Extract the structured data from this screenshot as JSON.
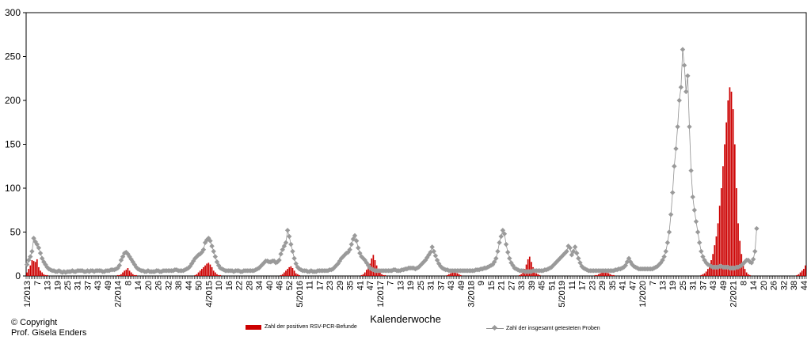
{
  "chart_data": {
    "type": "bar+line",
    "title": "",
    "xlabel": "Kalenderwoche",
    "ylabel": "",
    "ylim": [
      0,
      300
    ],
    "yticks": [
      0,
      50,
      100,
      150,
      200,
      250,
      300
    ],
    "x_tick_labels": [
      "1/2013",
      "7",
      "13",
      "19",
      "25",
      "31",
      "37",
      "43",
      "49",
      "2/2014",
      "8",
      "14",
      "20",
      "26",
      "32",
      "38",
      "44",
      "50",
      "4/2015",
      "10",
      "16",
      "22",
      "28",
      "34",
      "40",
      "46",
      "52",
      "5/2016",
      "11",
      "17",
      "23",
      "29",
      "35",
      "41",
      "47",
      "1/2017",
      "7",
      "13",
      "19",
      "25",
      "31",
      "37",
      "43",
      "49",
      "3/2018",
      "9",
      "15",
      "21",
      "27",
      "33",
      "39",
      "45",
      "51",
      "5/2019",
      "11",
      "17",
      "23",
      "29",
      "35",
      "41",
      "47",
      "1/2020",
      "7",
      "13",
      "19",
      "25",
      "31",
      "37",
      "43",
      "49",
      "2/2021",
      "8",
      "14",
      "20",
      "26",
      "32",
      "38",
      "44",
      "50",
      "4/2022",
      "10",
      "16",
      "22",
      "28",
      "34",
      "40",
      "46"
    ],
    "grid": false,
    "legend_position": "bottom",
    "series": [
      {
        "name": "Zahl der positiven RSV-PCR-Befunde",
        "type": "bar",
        "color": "#cc0000",
        "values": [
          4,
          8,
          12,
          18,
          17,
          16,
          19,
          10,
          6,
          4,
          2,
          1,
          1,
          0,
          0,
          0,
          0,
          0,
          0,
          0,
          0,
          0,
          0,
          0,
          0,
          0,
          0,
          0,
          0,
          0,
          0,
          0,
          0,
          0,
          0,
          0,
          0,
          0,
          0,
          0,
          0,
          0,
          0,
          0,
          0,
          0,
          0,
          0,
          0,
          0,
          0,
          0,
          0,
          0,
          1,
          1,
          2,
          4,
          6,
          7,
          9,
          6,
          4,
          2,
          1,
          1,
          0,
          0,
          0,
          0,
          0,
          0,
          0,
          0,
          0,
          0,
          0,
          0,
          0,
          0,
          0,
          0,
          0,
          0,
          0,
          0,
          0,
          0,
          0,
          0,
          0,
          0,
          0,
          0,
          0,
          0,
          0,
          0,
          0,
          0,
          1,
          2,
          4,
          6,
          8,
          10,
          12,
          14,
          15,
          13,
          10,
          6,
          4,
          2,
          1,
          1,
          0,
          0,
          0,
          0,
          0,
          0,
          0,
          0,
          0,
          0,
          0,
          0,
          0,
          0,
          0,
          0,
          0,
          0,
          0,
          0,
          0,
          0,
          0,
          0,
          0,
          0,
          0,
          0,
          0,
          0,
          0,
          0,
          0,
          0,
          0,
          1,
          2,
          4,
          6,
          8,
          10,
          11,
          9,
          6,
          3,
          2,
          1,
          0,
          0,
          0,
          0,
          0,
          0,
          0,
          0,
          0,
          0,
          0,
          0,
          0,
          0,
          0,
          0,
          0,
          0,
          0,
          0,
          0,
          0,
          0,
          0,
          0,
          0,
          0,
          0,
          0,
          0,
          0,
          0,
          0,
          0,
          0,
          0,
          1,
          2,
          4,
          7,
          10,
          14,
          20,
          24,
          18,
          12,
          7,
          4,
          2,
          1,
          1,
          0,
          0,
          0,
          0,
          0,
          0,
          0,
          0,
          0,
          0,
          0,
          0,
          0,
          0,
          0,
          0,
          0,
          0,
          0,
          0,
          0,
          0,
          0,
          0,
          0,
          0,
          0,
          0,
          0,
          0,
          0,
          0,
          0,
          0,
          0,
          0,
          1,
          2,
          3,
          5,
          6,
          4,
          3,
          2,
          1,
          0,
          0,
          0,
          0,
          0,
          0,
          0,
          0,
          0,
          0,
          0,
          0,
          0,
          0,
          0,
          0,
          0,
          0,
          0,
          0,
          0,
          0,
          0,
          0,
          0,
          0,
          0,
          0,
          0,
          0,
          0,
          0,
          0,
          0,
          1,
          2,
          4,
          8,
          13,
          19,
          22,
          16,
          10,
          6,
          3,
          2,
          1,
          0,
          0,
          0,
          0,
          0,
          0,
          0,
          0,
          0,
          0,
          0,
          0,
          0,
          0,
          0,
          0,
          0,
          0,
          0,
          0,
          0,
          0,
          0,
          0,
          0,
          0,
          0,
          0,
          0,
          0,
          0,
          0,
          1,
          1,
          2,
          3,
          4,
          5,
          5,
          4,
          3,
          2,
          1,
          1,
          0,
          0,
          0,
          0,
          0,
          0,
          0,
          0,
          0,
          0,
          0,
          0,
          0,
          0,
          0,
          0,
          0,
          0,
          0,
          0,
          0,
          0,
          0,
          0,
          0,
          0,
          0,
          0,
          0,
          0,
          0,
          0,
          0,
          0,
          0,
          0,
          0,
          0,
          0,
          0,
          0,
          0,
          0,
          0,
          0,
          0,
          0,
          0,
          0,
          0,
          0,
          1,
          2,
          3,
          5,
          8,
          12,
          18,
          25,
          35,
          45,
          60,
          80,
          100,
          125,
          150,
          175,
          200,
          215,
          210,
          190,
          150,
          100,
          60,
          40,
          25,
          15,
          8,
          4,
          2,
          1,
          0,
          0,
          0,
          0,
          0,
          0,
          0,
          0,
          0,
          0,
          0,
          0,
          0,
          0,
          0,
          0,
          0,
          0,
          0,
          0,
          0,
          0,
          0,
          0,
          0,
          0,
          0,
          1,
          2,
          4,
          6,
          8,
          12
        ]
      },
      {
        "name": "Zahl der insgesamt getesteten Proben",
        "type": "line",
        "color": "#909090",
        "marker": "diamond",
        "values": [
          13,
          18,
          22,
          28,
          43,
          39,
          36,
          32,
          26,
          20,
          16,
          13,
          10,
          8,
          7,
          6,
          6,
          5,
          5,
          6,
          5,
          4,
          5,
          4,
          5,
          5,
          5,
          6,
          5,
          5,
          6,
          6,
          6,
          6,
          5,
          5,
          6,
          5,
          6,
          6,
          5,
          6,
          6,
          6,
          6,
          5,
          5,
          6,
          6,
          6,
          7,
          7,
          7,
          8,
          9,
          12,
          18,
          22,
          26,
          27,
          25,
          22,
          19,
          16,
          13,
          10,
          8,
          7,
          6,
          6,
          5,
          5,
          6,
          5,
          5,
          5,
          5,
          6,
          6,
          5,
          5,
          6,
          6,
          6,
          6,
          6,
          6,
          6,
          7,
          7,
          6,
          6,
          6,
          6,
          7,
          8,
          9,
          11,
          14,
          17,
          20,
          22,
          24,
          25,
          27,
          30,
          38,
          41,
          43,
          40,
          34,
          28,
          22,
          16,
          12,
          9,
          8,
          7,
          6,
          6,
          6,
          6,
          6,
          5,
          6,
          6,
          6,
          5,
          5,
          6,
          6,
          6,
          6,
          6,
          6,
          6,
          7,
          8,
          9,
          11,
          13,
          15,
          17,
          17,
          16,
          16,
          17,
          17,
          15,
          16,
          18,
          25,
          30,
          34,
          38,
          52,
          45,
          36,
          28,
          20,
          14,
          10,
          8,
          7,
          6,
          6,
          6,
          5,
          5,
          6,
          5,
          5,
          5,
          6,
          6,
          6,
          6,
          6,
          6,
          6,
          7,
          7,
          8,
          10,
          12,
          14,
          17,
          20,
          22,
          24,
          26,
          27,
          30,
          36,
          42,
          46,
          40,
          32,
          26,
          22,
          20,
          18,
          15,
          12,
          9,
          8,
          7,
          6,
          6,
          6,
          6,
          6,
          6,
          6,
          6,
          6,
          6,
          6,
          7,
          7,
          6,
          6,
          6,
          7,
          7,
          8,
          8,
          9,
          9,
          9,
          9,
          8,
          9,
          10,
          12,
          14,
          16,
          18,
          21,
          24,
          27,
          33,
          28,
          23,
          18,
          14,
          11,
          9,
          8,
          7,
          7,
          6,
          6,
          6,
          6,
          6,
          6,
          6,
          6,
          6,
          6,
          6,
          6,
          6,
          6,
          6,
          6,
          7,
          7,
          7,
          8,
          8,
          9,
          9,
          10,
          11,
          12,
          13,
          16,
          20,
          28,
          38,
          45,
          52,
          48,
          36,
          27,
          20,
          15,
          12,
          9,
          8,
          7,
          6,
          6,
          6,
          5,
          5,
          5,
          5,
          5,
          6,
          6,
          6,
          6,
          6,
          6,
          6,
          7,
          7,
          8,
          9,
          10,
          12,
          14,
          16,
          18,
          20,
          22,
          24,
          26,
          28,
          34,
          32,
          24,
          28,
          33,
          26,
          20,
          15,
          11,
          9,
          8,
          7,
          6,
          6,
          6,
          6,
          6,
          6,
          6,
          6,
          6,
          6,
          6,
          6,
          6,
          6,
          6,
          6,
          7,
          7,
          8,
          8,
          9,
          10,
          12,
          16,
          20,
          16,
          13,
          11,
          10,
          9,
          8,
          8,
          8,
          8,
          8,
          8,
          8,
          8,
          8,
          9,
          10,
          11,
          13,
          15,
          18,
          22,
          28,
          38,
          50,
          70,
          95,
          125,
          145,
          170,
          200,
          215,
          258,
          240,
          210,
          228,
          170,
          120,
          90,
          75,
          62,
          50,
          38,
          28,
          22,
          18,
          15,
          13,
          12,
          11,
          10,
          10,
          10,
          10,
          11,
          11,
          10,
          10,
          10,
          10,
          9,
          9,
          9,
          9,
          10,
          10,
          11,
          12,
          14,
          16,
          18,
          18,
          16,
          15,
          19,
          28,
          54
        ]
      }
    ]
  },
  "footer": {
    "copyright_line1": "© Copyright",
    "copyright_line2": "Prof. Gisela Enders"
  }
}
